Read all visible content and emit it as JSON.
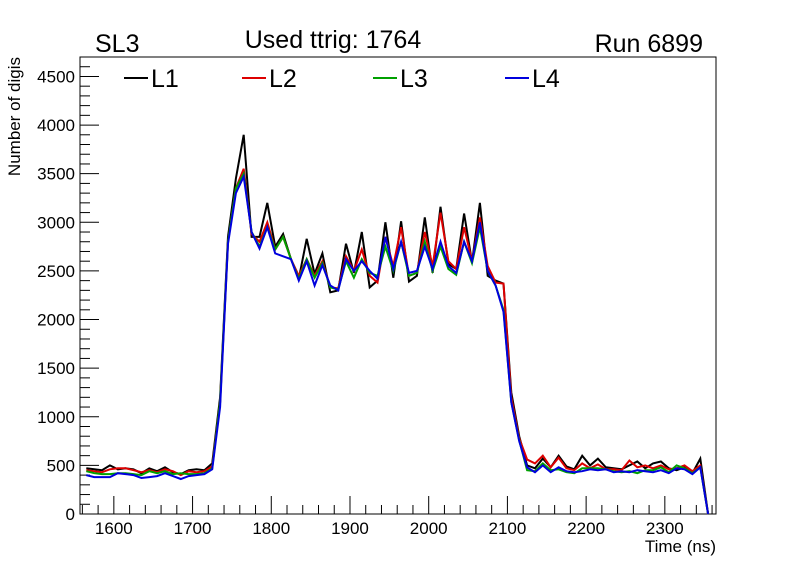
{
  "chart_data": {
    "type": "line",
    "title": "Used ttrig: 1764",
    "left_label": "SL3",
    "right_label": "Run 6899",
    "xlabel": "Time (ns)",
    "ylabel": "Number of digis",
    "xlim": [
      1557,
      2365
    ],
    "ylim": [
      0,
      4700
    ],
    "xticks": [
      1600,
      1700,
      1800,
      1900,
      2000,
      2100,
      2200,
      2300
    ],
    "xtick_labels": [
      "1600",
      "1700",
      "1800",
      "1900",
      "2000",
      "2100",
      "2200",
      "2300"
    ],
    "yticks": [
      0,
      500,
      1000,
      1500,
      2000,
      2500,
      3000,
      3500,
      4000,
      4500
    ],
    "ytick_labels": [
      "0",
      "500",
      "1000",
      "1500",
      "2000",
      "2500",
      "3000",
      "3500",
      "4000",
      "4500"
    ],
    "grid": false,
    "legend_position": "top",
    "x_start": 1565,
    "x_step": 10,
    "series": [
      {
        "name": "L1",
        "color": "#000000",
        "values": [
          470,
          460,
          450,
          500,
          460,
          470,
          460,
          420,
          470,
          440,
          480,
          430,
          410,
          450,
          460,
          450,
          520,
          1200,
          2850,
          3450,
          3900,
          2850,
          2850,
          3200,
          2750,
          2880,
          2620,
          2420,
          2830,
          2470,
          2680,
          2280,
          2300,
          2780,
          2480,
          2900,
          2330,
          2400,
          3000,
          2430,
          3010,
          2390,
          2450,
          3050,
          2480,
          3160,
          2570,
          2520,
          3090,
          2590,
          3200,
          2450,
          2400,
          2370,
          1250,
          800,
          500,
          470,
          570,
          480,
          600,
          490,
          460,
          600,
          500,
          570,
          480,
          470,
          460,
          500,
          540,
          470,
          520,
          540,
          470,
          450,
          480,
          420,
          570,
          0
        ]
      },
      {
        "name": "L2",
        "color": "#dd0000",
        "values": [
          450,
          440,
          430,
          460,
          470,
          470,
          450,
          430,
          450,
          430,
          460,
          440,
          400,
          440,
          430,
          440,
          490,
          1150,
          2800,
          3350,
          3550,
          2880,
          2800,
          3000,
          2720,
          2850,
          2620,
          2450,
          2620,
          2450,
          2600,
          2330,
          2320,
          2650,
          2500,
          2720,
          2450,
          2380,
          2850,
          2550,
          2950,
          2450,
          2480,
          2900,
          2550,
          3100,
          2600,
          2520,
          2950,
          2600,
          3050,
          2550,
          2380,
          2370,
          1200,
          780,
          560,
          520,
          600,
          480,
          580,
          470,
          450,
          520,
          470,
          510,
          460,
          460,
          450,
          550,
          480,
          500,
          470,
          500,
          460,
          470,
          500,
          440,
          500,
          0
        ]
      },
      {
        "name": "L3",
        "color": "#00a000",
        "values": [
          440,
          420,
          410,
          410,
          420,
          420,
          410,
          400,
          440,
          420,
          440,
          410,
          420,
          410,
          410,
          420,
          470,
          1150,
          2800,
          3350,
          3500,
          2900,
          2750,
          2950,
          2720,
          2850,
          2620,
          2420,
          2620,
          2430,
          2580,
          2330,
          2310,
          2600,
          2430,
          2620,
          2480,
          2450,
          2750,
          2500,
          2800,
          2450,
          2480,
          2800,
          2500,
          2750,
          2520,
          2460,
          2800,
          2580,
          2950,
          2500,
          2350,
          2100,
          1150,
          760,
          450,
          440,
          520,
          450,
          460,
          430,
          420,
          470,
          470,
          470,
          460,
          440,
          430,
          440,
          420,
          450,
          450,
          480,
          430,
          500,
          470,
          420,
          480,
          0
        ]
      },
      {
        "name": "L4",
        "color": "#0000dd",
        "values": [
          400,
          380,
          380,
          380,
          420,
          410,
          400,
          370,
          380,
          390,
          420,
          390,
          360,
          390,
          400,
          410,
          460,
          1100,
          2780,
          3300,
          3470,
          2900,
          2730,
          2950,
          2680,
          2650,
          2620,
          2400,
          2600,
          2350,
          2560,
          2350,
          2300,
          2620,
          2500,
          2600,
          2500,
          2420,
          2850,
          2520,
          2800,
          2480,
          2500,
          2750,
          2520,
          2800,
          2550,
          2480,
          2800,
          2600,
          3000,
          2500,
          2350,
          2080,
          1150,
          750,
          480,
          430,
          500,
          430,
          480,
          440,
          430,
          440,
          460,
          450,
          460,
          430,
          440,
          430,
          450,
          440,
          430,
          450,
          420,
          470,
          460,
          410,
          480,
          0
        ]
      }
    ]
  }
}
